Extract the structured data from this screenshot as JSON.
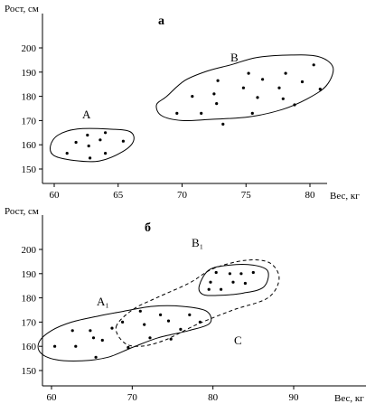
{
  "chart_data": [
    {
      "type": "scatter",
      "title": "а",
      "xlabel": "Вес, кг",
      "ylabel": "Рост, см",
      "xlim": [
        58,
        83
      ],
      "ylim": [
        145,
        208
      ],
      "xticks": [
        60,
        65,
        70,
        75,
        80
      ],
      "yticks": [
        150,
        160,
        170,
        180,
        190,
        200
      ],
      "grid": false,
      "series": [
        {
          "name": "A",
          "points": [
            [
              61.0,
              156.5
            ],
            [
              61.7,
              161.0
            ],
            [
              62.6,
              164.0
            ],
            [
              62.7,
              159.5
            ],
            [
              62.8,
              154.5
            ],
            [
              63.6,
              162.0
            ],
            [
              64.0,
              165.0
            ],
            [
              64.0,
              156.5
            ],
            [
              65.4,
              161.5
            ]
          ],
          "outline": [
            [
              61.8,
              166.5
            ],
            [
              64.2,
              166.5
            ],
            [
              65.9,
              165.5
            ],
            [
              66.2,
              161.5
            ],
            [
              65.3,
              157.0
            ],
            [
              63.5,
              153.3
            ],
            [
              61.6,
              153.5
            ],
            [
              60.0,
              155.5
            ],
            [
              59.7,
              159.5
            ],
            [
              60.3,
              164.0
            ]
          ]
        },
        {
          "name": "B",
          "points": [
            [
              69.6,
              173.0
            ],
            [
              70.8,
              180.0
            ],
            [
              71.5,
              173.0
            ],
            [
              72.5,
              181.0
            ],
            [
              72.7,
              177.0
            ],
            [
              72.8,
              186.5
            ],
            [
              73.2,
              168.5
            ],
            [
              74.8,
              183.5
            ],
            [
              75.2,
              189.5
            ],
            [
              75.5,
              173.0
            ],
            [
              75.9,
              179.5
            ],
            [
              76.3,
              187.0
            ],
            [
              77.6,
              183.5
            ],
            [
              77.9,
              179.0
            ],
            [
              78.1,
              189.5
            ],
            [
              78.8,
              176.5
            ],
            [
              79.4,
              186.0
            ],
            [
              80.3,
              193.0
            ],
            [
              80.8,
              183.0
            ]
          ],
          "outline": [
            [
              68.8,
              180.0
            ],
            [
              70.2,
              186.5
            ],
            [
              72.0,
              190.5
            ],
            [
              73.8,
              193.0
            ],
            [
              75.8,
              196.0
            ],
            [
              78.2,
              197.0
            ],
            [
              80.6,
              196.5
            ],
            [
              81.8,
              192.0
            ],
            [
              81.3,
              184.5
            ],
            [
              79.8,
              179.0
            ],
            [
              77.8,
              174.5
            ],
            [
              75.2,
              171.5
            ],
            [
              72.2,
              170.5
            ],
            [
              70.0,
              170.0
            ],
            [
              68.4,
              172.0
            ],
            [
              68.0,
              176.5
            ]
          ]
        }
      ]
    },
    {
      "type": "scatter",
      "title": "б",
      "xlabel": "Вес, кг",
      "ylabel": "Рост, см",
      "xlim": [
        58,
        96
      ],
      "ylim": [
        145,
        208
      ],
      "xticks": [
        60,
        70,
        80,
        90
      ],
      "yticks": [
        150,
        160,
        170,
        180,
        190,
        200
      ],
      "grid": false,
      "series": [
        {
          "name": "A₁",
          "points": [
            [
              60.4,
              160.0
            ],
            [
              62.6,
              166.5
            ],
            [
              63.0,
              160.0
            ],
            [
              64.8,
              166.5
            ],
            [
              65.2,
              163.5
            ],
            [
              65.5,
              155.5
            ],
            [
              66.3,
              162.5
            ],
            [
              67.5,
              167.5
            ],
            [
              68.8,
              170.0
            ],
            [
              69.5,
              159.5
            ],
            [
              71.0,
              174.5
            ],
            [
              71.5,
              169.0
            ],
            [
              72.2,
              163.5
            ],
            [
              73.5,
              173.0
            ],
            [
              74.5,
              170.5
            ],
            [
              74.8,
              163.0
            ],
            [
              76.0,
              167.0
            ],
            [
              77.1,
              173.0
            ],
            [
              78.4,
              170.0
            ]
          ],
          "outline": [
            [
              58.5,
              162.0
            ],
            [
              60.0,
              166.5
            ],
            [
              62.5,
              170.0
            ],
            [
              65.8,
              172.5
            ],
            [
              69.0,
              174.5
            ],
            [
              72.5,
              176.5
            ],
            [
              76.2,
              176.5
            ],
            [
              79.2,
              174.5
            ],
            [
              79.6,
              169.5
            ],
            [
              77.0,
              166.5
            ],
            [
              73.2,
              163.5
            ],
            [
              70.0,
              159.5
            ],
            [
              67.0,
              155.5
            ],
            [
              63.8,
              154.0
            ],
            [
              60.5,
              154.5
            ],
            [
              58.6,
              157.5
            ]
          ]
        },
        {
          "name": "B₁",
          "points": [
            [
              79.5,
              183.5
            ],
            [
              79.7,
              186.5
            ],
            [
              80.4,
              190.5
            ],
            [
              81.0,
              183.5
            ],
            [
              82.1,
              190.0
            ],
            [
              82.5,
              186.5
            ],
            [
              83.5,
              190.0
            ],
            [
              84.0,
              186.0
            ],
            [
              85.0,
              190.5
            ]
          ],
          "outline": [
            [
              78.3,
              185.0
            ],
            [
              79.5,
              191.5
            ],
            [
              82.0,
              193.5
            ],
            [
              85.0,
              193.5
            ],
            [
              86.8,
              191.0
            ],
            [
              86.3,
              184.5
            ],
            [
              83.8,
              182.0
            ],
            [
              80.5,
              181.0
            ],
            [
              78.7,
              181.5
            ]
          ]
        },
        {
          "name": "C",
          "points": [],
          "dashed": true,
          "outline": [
            [
              68.0,
              168.0
            ],
            [
              70.0,
              175.0
            ],
            [
              73.0,
              180.0
            ],
            [
              77.0,
              186.0
            ],
            [
              80.0,
              192.0
            ],
            [
              84.0,
              195.5
            ],
            [
              87.0,
              194.5
            ],
            [
              88.2,
              188.0
            ],
            [
              86.8,
              180.0
            ],
            [
              82.5,
              175.0
            ],
            [
              78.0,
              169.0
            ],
            [
              74.0,
              162.5
            ],
            [
              71.0,
              160.0
            ],
            [
              69.0,
              161.5
            ]
          ]
        }
      ]
    }
  ]
}
